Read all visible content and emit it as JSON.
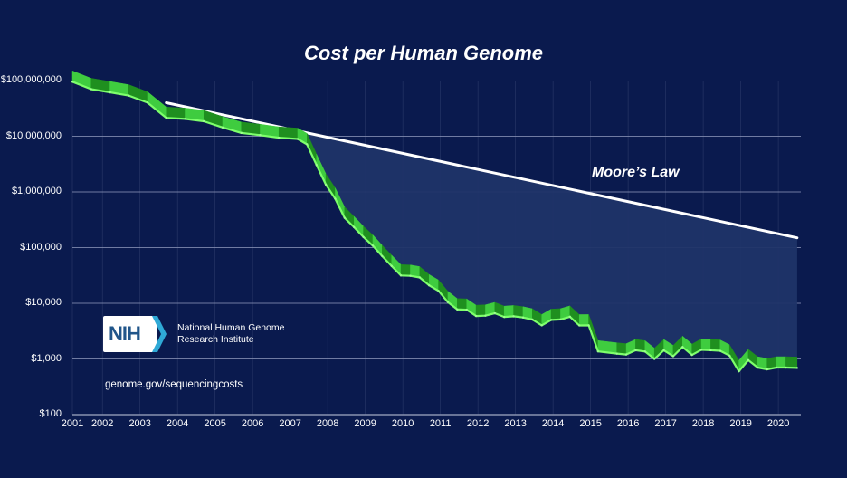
{
  "chart_data": {
    "type": "line",
    "title": "Cost per Human Genome",
    "y_scale": "log",
    "ylim": [
      100,
      100000000
    ],
    "xlim": [
      2001.0,
      2020.4
    ],
    "y_ticks": [
      {
        "value": 100000000,
        "label": "$100,000,000"
      },
      {
        "value": 10000000,
        "label": "$10,000,000"
      },
      {
        "value": 1000000,
        "label": "$1,000,000"
      },
      {
        "value": 100000,
        "label": "$100,000"
      },
      {
        "value": 10000,
        "label": "$10,000"
      },
      {
        "value": 1000,
        "label": "$1,000"
      },
      {
        "value": 100,
        "label": "$100"
      }
    ],
    "x_ticks": [
      {
        "value": 2001.0,
        "label": "2001"
      },
      {
        "value": 2001.8,
        "label": "2002"
      },
      {
        "value": 2002.8,
        "label": "2003"
      },
      {
        "value": 2003.8,
        "label": "2004"
      },
      {
        "value": 2004.8,
        "label": "2005"
      },
      {
        "value": 2005.8,
        "label": "2006"
      },
      {
        "value": 2006.8,
        "label": "2007"
      },
      {
        "value": 2007.8,
        "label": "2008"
      },
      {
        "value": 2008.8,
        "label": "2009"
      },
      {
        "value": 2009.8,
        "label": "2010"
      },
      {
        "value": 2010.8,
        "label": "2011"
      },
      {
        "value": 2011.8,
        "label": "2012"
      },
      {
        "value": 2012.8,
        "label": "2013"
      },
      {
        "value": 2013.8,
        "label": "2014"
      },
      {
        "value": 2014.8,
        "label": "2015"
      },
      {
        "value": 2015.8,
        "label": "2016"
      },
      {
        "value": 2016.8,
        "label": "2017"
      },
      {
        "value": 2017.8,
        "label": "2018"
      },
      {
        "value": 2018.8,
        "label": "2019"
      },
      {
        "value": 2019.8,
        "label": "2020"
      }
    ],
    "series": [
      {
        "name": "",
        "color": "#3fcc3f",
        "points": [
          [
            2001.0,
            95263072
          ],
          [
            2001.5,
            70175437
          ],
          [
            2002.0,
            61448422
          ],
          [
            2002.5,
            53751684
          ],
          [
            2003.0,
            40157554
          ],
          [
            2003.5,
            21347732
          ],
          [
            2004.0,
            20442576
          ],
          [
            2004.5,
            18573994
          ],
          [
            2005.0,
            14391724
          ],
          [
            2005.5,
            11455315
          ],
          [
            2006.0,
            10474315
          ],
          [
            2006.5,
            9408739
          ],
          [
            2007.0,
            8927342
          ],
          [
            2007.25,
            7147571
          ],
          [
            2007.5,
            3063474
          ],
          [
            2007.75,
            1352982
          ],
          [
            2008.0,
            752080
          ],
          [
            2008.25,
            342502
          ],
          [
            2008.5,
            232735
          ],
          [
            2008.75,
            154714
          ],
          [
            2009.0,
            108065
          ],
          [
            2009.25,
            70333
          ],
          [
            2009.5,
            46774
          ],
          [
            2009.75,
            31512
          ],
          [
            2010.0,
            31125
          ],
          [
            2010.25,
            29092
          ],
          [
            2010.5,
            20963
          ],
          [
            2010.75,
            16712
          ],
          [
            2011.0,
            10497
          ],
          [
            2011.25,
            7743
          ],
          [
            2011.5,
            7666
          ],
          [
            2011.75,
            5901
          ],
          [
            2012.0,
            5985
          ],
          [
            2012.25,
            6618
          ],
          [
            2012.5,
            5671
          ],
          [
            2012.75,
            5826
          ],
          [
            2013.0,
            5550
          ],
          [
            2013.25,
            5096
          ],
          [
            2013.5,
            4008
          ],
          [
            2013.75,
            5012
          ],
          [
            2014.0,
            5115
          ],
          [
            2014.25,
            5729
          ],
          [
            2014.5,
            4000
          ],
          [
            2014.75,
            4006
          ],
          [
            2015.0,
            1363
          ],
          [
            2015.5,
            1245
          ],
          [
            2015.75,
            1200
          ],
          [
            2016.0,
            1430
          ],
          [
            2016.25,
            1360
          ],
          [
            2016.5,
            1000
          ],
          [
            2016.75,
            1430
          ],
          [
            2017.0,
            1120
          ],
          [
            2017.25,
            1640
          ],
          [
            2017.5,
            1180
          ],
          [
            2017.75,
            1460
          ],
          [
            2018.0,
            1430
          ],
          [
            2018.25,
            1400
          ],
          [
            2018.5,
            1150
          ],
          [
            2018.75,
            600
          ],
          [
            2019.0,
            950
          ],
          [
            2019.25,
            700
          ],
          [
            2019.5,
            650
          ],
          [
            2019.75,
            700
          ],
          [
            2020.0,
            700
          ],
          [
            2020.3,
            690
          ]
        ]
      },
      {
        "name": "Moore’s Law",
        "color": "#ffffff",
        "points": [
          [
            2003.5,
            40000000
          ],
          [
            2020.3,
            150000
          ]
        ]
      }
    ],
    "annotations": [
      "Moore’s Law"
    ],
    "grid": true,
    "legend": "none"
  },
  "logo": {
    "mark": "NIH",
    "line1": "National Human Genome",
    "line2": "Research Institute"
  },
  "source_url": "genome.gov/sequencingcosts",
  "colors": {
    "background": "#0a1a4e",
    "series": "#3fcc3f",
    "series_dark": "#1f8f1f",
    "gap_fill": "#1f3468",
    "moore_line": "#ffffff",
    "gridline": "#8a94b8"
  }
}
